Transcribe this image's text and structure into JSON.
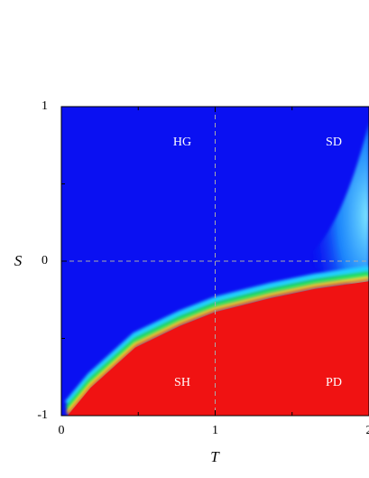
{
  "chart_data": {
    "type": "heatmap",
    "xlabel": "T",
    "ylabel": "S",
    "xlim": [
      0,
      2
    ],
    "ylim": [
      -1,
      1
    ],
    "xticks": [
      0,
      1,
      2
    ],
    "yticks": [
      -1,
      0,
      1
    ],
    "xminor": [
      0.5,
      1.5
    ],
    "yminor": [
      -0.5,
      0.5
    ],
    "xref": 1,
    "yref": 0,
    "background_color": "#0a10f2",
    "region_color": "#f01212",
    "boundary": {
      "T": [
        0.04,
        0.19,
        0.48,
        0.77,
        1.0,
        1.36,
        1.65,
        2.0
      ],
      "S": [
        -1,
        -0.82,
        -0.56,
        -0.42,
        -0.33,
        -0.24,
        -0.18,
        -0.13
      ]
    },
    "annotations": [
      "HG",
      "SD",
      "SH",
      "PD"
    ]
  }
}
